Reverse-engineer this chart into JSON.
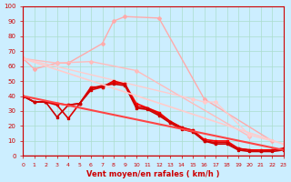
{
  "background_color": "#cceeff",
  "grid_color": "#aaddcc",
  "xlabel": "Vent moyen/en rafales ( km/h )",
  "xlabel_color": "#cc0000",
  "tick_color": "#cc0000",
  "xlim": [
    0,
    23
  ],
  "ylim": [
    0,
    100
  ],
  "xticks": [
    0,
    1,
    2,
    3,
    4,
    5,
    6,
    7,
    8,
    9,
    10,
    11,
    12,
    13,
    14,
    15,
    16,
    17,
    18,
    19,
    20,
    21,
    22,
    23
  ],
  "yticks": [
    0,
    10,
    20,
    30,
    40,
    50,
    60,
    70,
    80,
    90,
    100
  ],
  "lines": [
    {
      "x": [
        0,
        1,
        2,
        3,
        4,
        5,
        6,
        7,
        8,
        9,
        10,
        11,
        12,
        13,
        14,
        15,
        16,
        17,
        18,
        19,
        20,
        21,
        22,
        23
      ],
      "y": [
        65,
        58,
        null,
        62,
        62,
        null,
        null,
        75,
        90,
        93,
        null,
        null,
        92,
        null,
        null,
        null,
        38,
        null,
        null,
        null,
        null,
        null,
        10,
        null
      ],
      "color": "#ffaaaa",
      "marker": "D",
      "markersize": 2,
      "linewidth": 1.0
    },
    {
      "x": [
        0,
        1,
        2,
        3,
        4,
        5,
        6,
        7,
        8,
        9,
        10,
        11,
        12,
        13,
        14,
        15,
        16,
        17,
        18,
        19,
        20,
        21,
        22,
        23
      ],
      "y": [
        65,
        null,
        null,
        62,
        null,
        null,
        63,
        null,
        null,
        null,
        57,
        null,
        null,
        null,
        null,
        null,
        null,
        null,
        null,
        null,
        13,
        null,
        null,
        null
      ],
      "color": "#ffbbbb",
      "marker": "D",
      "markersize": 2,
      "linewidth": 1.0
    },
    {
      "x": [
        0,
        2,
        3,
        4,
        5,
        6,
        7,
        8,
        9,
        10,
        11,
        12,
        13,
        14,
        15,
        16,
        17,
        18,
        19,
        20,
        21,
        22,
        23
      ],
      "y": [
        65,
        null,
        null,
        null,
        null,
        null,
        null,
        null,
        null,
        null,
        null,
        null,
        null,
        null,
        38,
        36,
        36,
        null,
        null,
        14,
        null,
        null,
        8
      ],
      "color": "#ffcccc",
      "marker": "D",
      "markersize": 2,
      "linewidth": 1.0
    },
    {
      "x": [
        0,
        1,
        2,
        3,
        4,
        5,
        6,
        7,
        8,
        9,
        10,
        11,
        12,
        13,
        14,
        15,
        16,
        17,
        18,
        19,
        20,
        21,
        22,
        23
      ],
      "y": [
        40,
        36,
        36,
        35,
        34,
        35,
        46,
        46,
        49,
        48,
        35,
        32,
        29,
        23,
        19,
        17,
        11,
        10,
        10,
        5,
        4,
        4,
        4,
        5
      ],
      "color": "#ff0000",
      "marker": "s",
      "markersize": 2,
      "linewidth": 1.2
    },
    {
      "x": [
        0,
        1,
        2,
        3,
        4,
        5,
        6,
        7,
        8,
        9,
        10,
        11,
        12,
        13,
        14,
        15,
        16,
        17,
        18,
        19,
        20,
        21,
        22,
        23
      ],
      "y": [
        40,
        36,
        36,
        34,
        25,
        35,
        44,
        46,
        50,
        48,
        33,
        32,
        28,
        23,
        19,
        17,
        10,
        9,
        9,
        5,
        4,
        3,
        4,
        5
      ],
      "color": "#dd0000",
      "marker": "s",
      "markersize": 2,
      "linewidth": 1.2
    },
    {
      "x": [
        0,
        1,
        2,
        3,
        4,
        5,
        6,
        7,
        8,
        9,
        10,
        11,
        12,
        13,
        14,
        15,
        16,
        17,
        18,
        19,
        20,
        21,
        22,
        23
      ],
      "y": [
        40,
        36,
        36,
        26,
        34,
        35,
        45,
        47,
        48,
        47,
        32,
        31,
        27,
        22,
        18,
        16,
        10,
        8,
        8,
        4,
        3,
        3,
        3,
        4
      ],
      "color": "#cc0000",
      "marker": "s",
      "markersize": 2,
      "linewidth": 1.2
    },
    {
      "x": [
        0,
        23
      ],
      "y": [
        40,
        4
      ],
      "color": "#ff4444",
      "marker": null,
      "markersize": 0,
      "linewidth": 1.5
    },
    {
      "x": [
        0,
        23
      ],
      "y": [
        65,
        8
      ],
      "color": "#ffcccc",
      "marker": null,
      "markersize": 0,
      "linewidth": 1.2
    }
  ]
}
